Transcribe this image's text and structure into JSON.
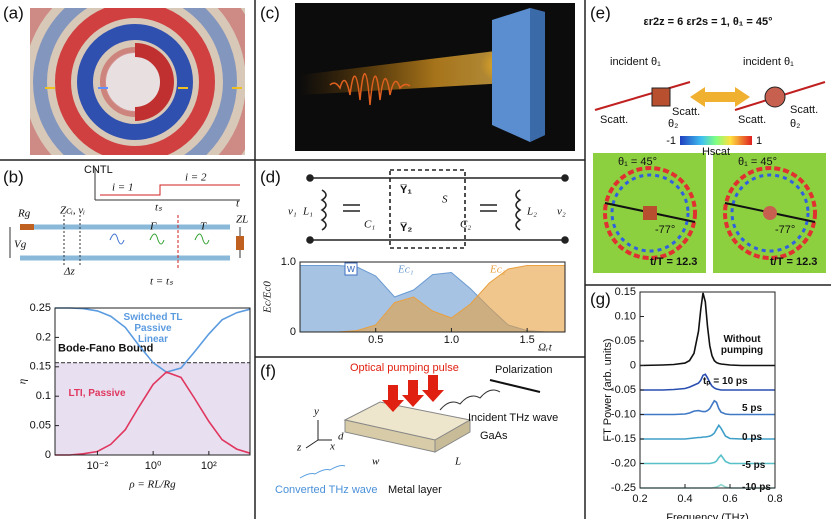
{
  "panel_labels": [
    "(a)",
    "(b)",
    "(c)",
    "(d)",
    "(e)",
    "(f)",
    "(g)"
  ],
  "b_circuit": {
    "cntl": "CNTL",
    "i1": "i = 1",
    "i2": "i = 2",
    "t": "t",
    "ts": "tₛ",
    "rg": "Rg",
    "vg": "Vg",
    "zc": "Zᴄᵢ, vᵢ",
    "dz": "Δz",
    "gamma": "Γ",
    "tr": "T",
    "zl": "ZL",
    "tts": "t = tₛ"
  },
  "d_circuit": {
    "v1": "v₁",
    "l1": "L₁",
    "c1": "C₁",
    "y1": "Y̅₁",
    "y2": "Y̅₂",
    "s": "S",
    "c2": "C₂",
    "l2": "L₂",
    "v2": "v₂"
  },
  "e_panel": {
    "title": "εr2z = 6 εr2s = 1, θ₁ = 45°",
    "incident": "incident θ₁",
    "scatt": "Scatt.",
    "theta2": "θ₂",
    "cmin": "-1",
    "hscat": "Hscat",
    "cmax": "1",
    "theta1": "θ₁ = 45°",
    "angle": "-77°",
    "time": "t/T = 12.3"
  },
  "f_panel": {
    "pump": "Optical pumping pulse",
    "pol": "Polarization",
    "incident": "Incident THz wave",
    "gaas": "GaAs",
    "metal": "Metal layer",
    "converted": "Converted THz wave",
    "y": "y",
    "x": "x",
    "z": "z",
    "d": "d",
    "w": "w",
    "L": "L"
  },
  "chart_data": [
    {
      "type": "line",
      "xscale": "log",
      "xlim": [
        0.0003,
        3000
      ],
      "ylim": [
        0,
        0.25
      ],
      "xticks": [
        {
          "value": 0.01,
          "label": "10⁻²"
        },
        {
          "value": 1,
          "label": "10⁰"
        },
        {
          "value": 100,
          "label": "10²"
        }
      ],
      "yticks": [
        0,
        0.05,
        0.1,
        0.15,
        0.2,
        0.25
      ],
      "xlabel": "ρ = RL/Rg",
      "ylabel": "η",
      "bound": 0.157,
      "bound_label": "Bode-Fano Bound",
      "x": [
        0.0003,
        0.001,
        0.003,
        0.01,
        0.03,
        0.1,
        0.3,
        1,
        3,
        10,
        30,
        100,
        300,
        1000,
        3000
      ],
      "series": [
        {
          "name": "Switched TL Passive Linear",
          "color": "#5b9be0",
          "values": [
            0.25,
            0.25,
            0.249,
            0.245,
            0.236,
            0.217,
            0.187,
            0.157,
            0.141,
            0.148,
            0.175,
            0.206,
            0.23,
            0.242,
            0.248
          ]
        },
        {
          "name": "LTI, Passive",
          "color": "#e0365f",
          "values": [
            0.0,
            0.0,
            0.002,
            0.006,
            0.018,
            0.043,
            0.081,
            0.12,
            0.141,
            0.132,
            0.097,
            0.057,
            0.026,
            0.01,
            0.003
          ]
        }
      ]
    },
    {
      "type": "area",
      "xlim": [
        0,
        1.75
      ],
      "ylim": [
        0,
        1
      ],
      "xticks": [
        0.5,
        {
          "value": 1,
          "label": "1.0"
        },
        1.5
      ],
      "yticks": [
        0,
        {
          "value": 1,
          "label": "1.0"
        }
      ],
      "xlabel": "Ωᵣt",
      "ylabel": "Ec/Ec0",
      "annotation": "w",
      "x": [
        0,
        0.125,
        0.25,
        0.375,
        0.5,
        0.625,
        0.75,
        0.875,
        1,
        1.125,
        1.25,
        1.375,
        1.5,
        1.625,
        1.75
      ],
      "series": [
        {
          "name": "Eᴄ₁",
          "color": "#6b9bd1",
          "values": [
            0.95,
            0.95,
            0.95,
            0.93,
            0.8,
            0.5,
            0.6,
            0.82,
            0.85,
            0.62,
            0.35,
            0.1,
            0.02,
            0,
            0
          ]
        },
        {
          "name": "Eᴄ₂",
          "color": "#e8a040",
          "values": [
            0,
            0,
            0,
            0.02,
            0.1,
            0.42,
            0.5,
            0.3,
            0.2,
            0.4,
            0.7,
            0.9,
            0.95,
            0.95,
            0.95
          ]
        }
      ]
    },
    {
      "type": "line",
      "xlim": [
        0.2,
        0.8
      ],
      "ylim": [
        -0.25,
        0.15
      ],
      "xticks": [
        0.2,
        0.4,
        0.6,
        0.8
      ],
      "yticks": [
        0.15,
        {
          "value": 0.1,
          "label": "0.10"
        },
        0.05,
        0,
        -0.05,
        {
          "value": -0.1,
          "label": "-0.10"
        },
        -0.15,
        {
          "value": -0.2,
          "label": "-0.20"
        },
        -0.25
      ],
      "xlabel": "Frequency (THz)",
      "ylabel": "FT Power (arb. units)",
      "x": [
        0.2,
        0.3,
        0.35,
        0.4,
        0.42,
        0.44,
        0.46,
        0.47,
        0.48,
        0.49,
        0.5,
        0.51,
        0.52,
        0.53,
        0.54,
        0.55,
        0.56,
        0.58,
        0.6,
        0.65,
        0.7,
        0.8
      ],
      "series": [
        {
          "name": "Without pumping",
          "color": "#111111",
          "values": [
            0,
            0.001,
            0.002,
            0.005,
            0.01,
            0.025,
            0.07,
            0.115,
            0.148,
            0.13,
            0.08,
            0.04,
            0.02,
            0.01,
            0.006,
            0.004,
            0.003,
            0.002,
            0.001,
            0,
            0,
            0
          ]
        },
        {
          "name": "tₚ = 10 ps",
          "color": "#2a4fb0",
          "values": [
            -0.05,
            -0.05,
            -0.049,
            -0.047,
            -0.044,
            -0.04,
            -0.036,
            -0.03,
            -0.02,
            -0.018,
            -0.025,
            -0.035,
            -0.042,
            -0.046,
            -0.048,
            -0.049,
            -0.05,
            -0.05,
            -0.05,
            -0.05,
            -0.05,
            -0.05
          ]
        },
        {
          "name": "5 ps",
          "color": "#3f78c4",
          "values": [
            -0.1,
            -0.1,
            -0.1,
            -0.099,
            -0.097,
            -0.093,
            -0.092,
            -0.093,
            -0.094,
            -0.094,
            -0.092,
            -0.088,
            -0.08,
            -0.072,
            -0.075,
            -0.088,
            -0.095,
            -0.099,
            -0.1,
            -0.1,
            -0.1,
            -0.1
          ]
        },
        {
          "name": "0 ps",
          "color": "#3f9fc8",
          "values": [
            -0.15,
            -0.15,
            -0.15,
            -0.15,
            -0.149,
            -0.148,
            -0.147,
            -0.147,
            -0.146,
            -0.146,
            -0.145,
            -0.144,
            -0.142,
            -0.138,
            -0.13,
            -0.122,
            -0.128,
            -0.144,
            -0.149,
            -0.15,
            -0.15,
            -0.15
          ]
        },
        {
          "name": "-5 ps",
          "color": "#58c0c8",
          "values": [
            -0.2,
            -0.2,
            -0.2,
            -0.2,
            -0.2,
            -0.2,
            -0.2,
            -0.2,
            -0.2,
            -0.2,
            -0.2,
            -0.2,
            -0.199,
            -0.198,
            -0.195,
            -0.188,
            -0.183,
            -0.196,
            -0.2,
            -0.2,
            -0.2,
            -0.2
          ]
        },
        {
          "name": "-10 ps",
          "color": "#8fd8d0",
          "values": [
            -0.25,
            -0.25,
            -0.25,
            -0.25,
            -0.25,
            -0.25,
            -0.25,
            -0.25,
            -0.25,
            -0.25,
            -0.25,
            -0.25,
            -0.25,
            -0.249,
            -0.248,
            -0.246,
            -0.243,
            -0.248,
            -0.25,
            -0.25,
            -0.25,
            -0.25
          ]
        }
      ]
    }
  ]
}
